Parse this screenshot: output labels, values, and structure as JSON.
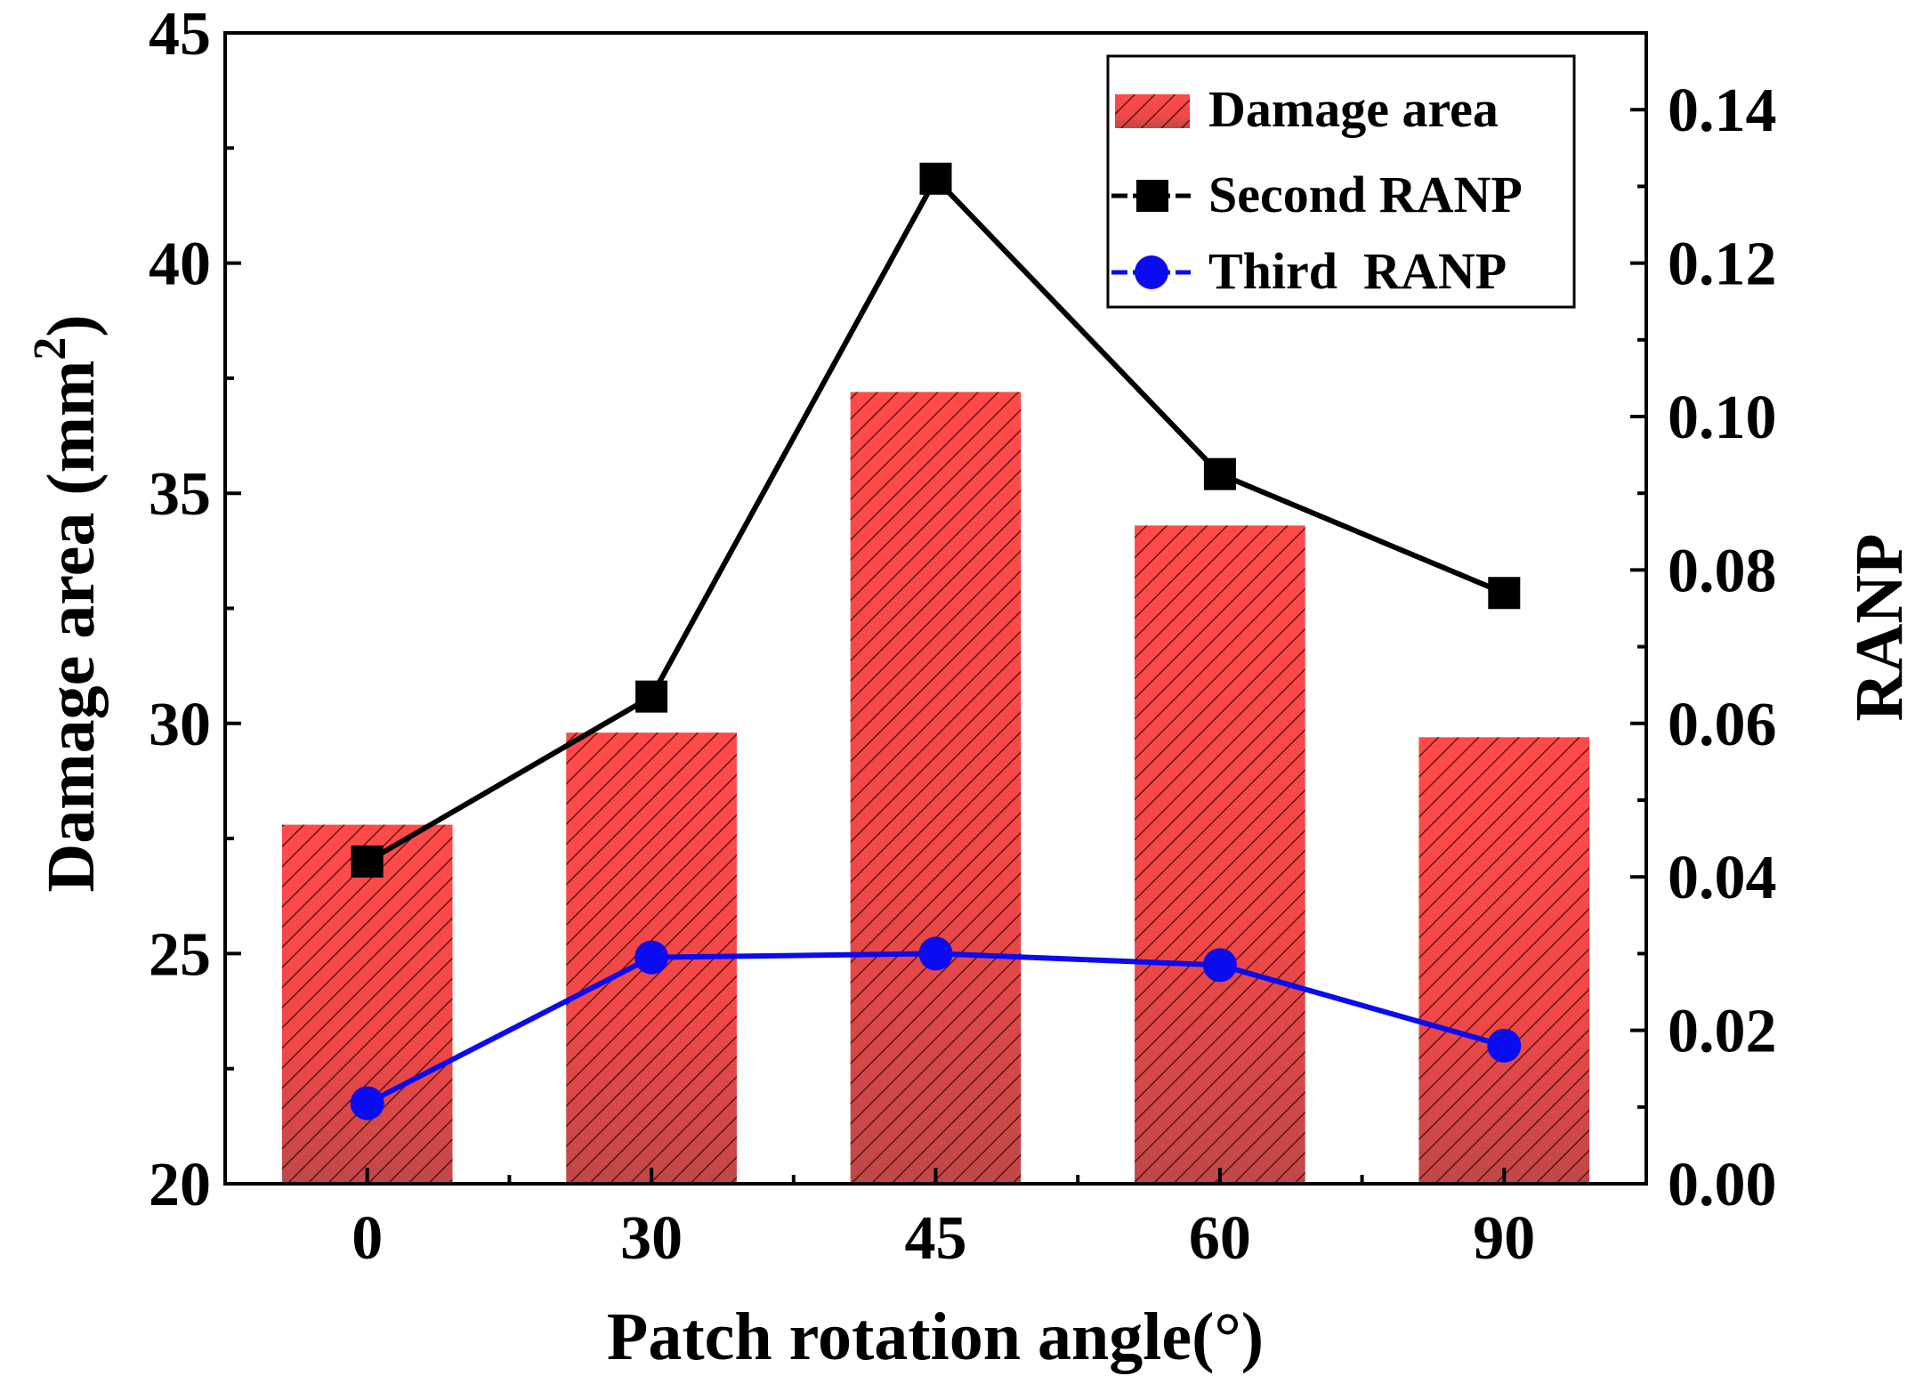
{
  "chart_data": {
    "type": "bar+line",
    "categories": [
      "0",
      "30",
      "45",
      "60",
      "90"
    ],
    "xlabel": "Patch rotation angle(°)",
    "ylabel_left_main": "Damage area (mm",
    "ylabel_left_sup": "2",
    "ylabel_left_close": ")",
    "ylabel_right": "RANP",
    "ylim_left": [
      20,
      45
    ],
    "yticks_left": [
      "20",
      "25",
      "30",
      "35",
      "40",
      "45"
    ],
    "ylim_right": [
      0.0,
      0.15
    ],
    "yticks_right": [
      "0.00",
      "0.02",
      "0.04",
      "0.06",
      "0.08",
      "0.10",
      "0.12",
      "0.14"
    ],
    "bars": {
      "name": "Damage area",
      "axis": "left",
      "values": [
        27.8,
        29.8,
        37.2,
        34.3,
        29.7
      ],
      "color": "#f04545",
      "hatch_color": "#3a0000"
    },
    "series": [
      {
        "name": "Second RANP",
        "axis": "right",
        "marker": "square",
        "color": "#000000",
        "values": [
          0.042,
          0.0635,
          0.131,
          0.0925,
          0.077
        ]
      },
      {
        "name": "Third  RANP",
        "axis": "right",
        "marker": "circle",
        "color": "#0b0bf0",
        "values": [
          0.0105,
          0.0295,
          0.03,
          0.0285,
          0.018
        ]
      }
    ],
    "legend": {
      "position": "top-right",
      "entries": [
        "Damage area",
        "Second RANP",
        "Third  RANP"
      ]
    }
  }
}
